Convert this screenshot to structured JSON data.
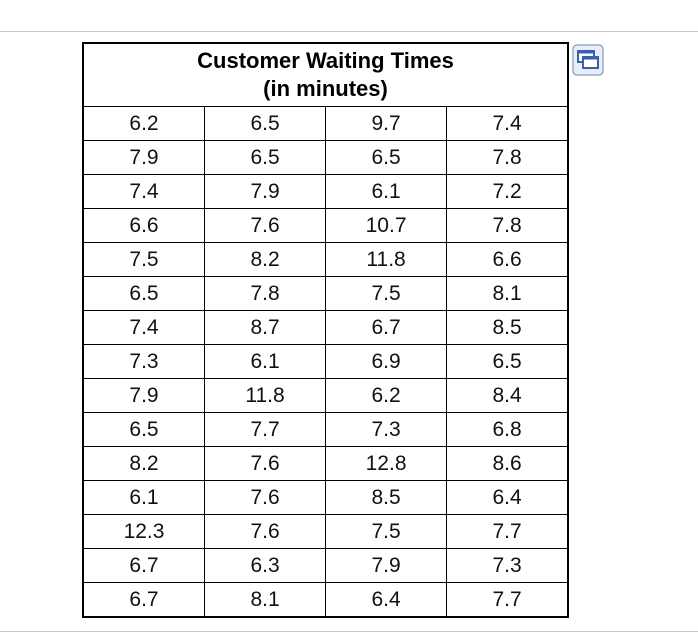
{
  "table": {
    "title": [
      "Customer Waiting Times",
      "(in minutes)"
    ],
    "rows": [
      [
        "6.2",
        "6.5",
        "9.7",
        "7.4"
      ],
      [
        "7.9",
        "6.5",
        "6.5",
        "7.8"
      ],
      [
        "7.4",
        "7.9",
        "6.1",
        "7.2"
      ],
      [
        "6.6",
        "7.6",
        "10.7",
        "7.8"
      ],
      [
        "7.5",
        "8.2",
        "11.8",
        "6.6"
      ],
      [
        "6.5",
        "7.8",
        "7.5",
        "8.1"
      ],
      [
        "7.4",
        "8.7",
        "6.7",
        "8.5"
      ],
      [
        "7.3",
        "6.1",
        "6.9",
        "6.5"
      ],
      [
        "7.9",
        "11.8",
        "6.2",
        "8.4"
      ],
      [
        "6.5",
        "7.7",
        "7.3",
        "6.8"
      ],
      [
        "8.2",
        "7.6",
        "12.8",
        "8.6"
      ],
      [
        "6.1",
        "7.6",
        "8.5",
        "6.4"
      ],
      [
        "12.3",
        "7.6",
        "7.5",
        "7.7"
      ],
      [
        "6.7",
        "6.3",
        "7.9",
        "7.3"
      ],
      [
        "6.7",
        "8.1",
        "6.4",
        "7.7"
      ]
    ]
  }
}
